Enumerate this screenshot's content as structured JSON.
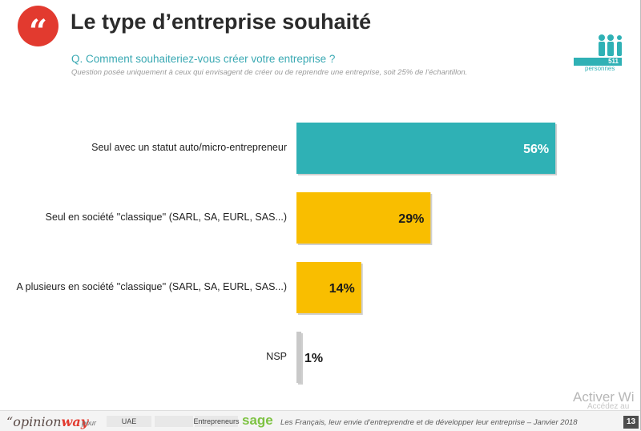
{
  "header": {
    "title": "Le type d’entreprise souhaité",
    "quote_glyph": "“",
    "question": "Q. Comment souhaiteriez-vous créer votre entreprise ?",
    "note": "Question posée uniquement à ceux qui envisagent de créer ou de reprendre une entreprise, soit 25% de l’échantillon."
  },
  "badge": {
    "count": "511",
    "label": "personnes",
    "icon": "people-group-icon"
  },
  "chart_data": {
    "type": "bar",
    "orientation": "horizontal",
    "categories": [
      "Seul avec un statut auto/micro-entrepreneur",
      "Seul en société ''classique'' (SARL, SA, EURL, SAS...)",
      "A plusieurs en société ''classique'' (SARL, SA, EURL, SAS...)",
      "NSP"
    ],
    "values": [
      56,
      29,
      14,
      1
    ],
    "value_labels": [
      "56%",
      "29%",
      "14%",
      "1%"
    ],
    "colors": [
      "#2fb1b5",
      "#f9be00",
      "#f9be00",
      "#c9c9c9"
    ],
    "label_colors": [
      "#ffffff",
      "#1a1a1a",
      "#1a1a1a",
      "#1a1a1a"
    ],
    "xlim": [
      0,
      100
    ],
    "grid": false,
    "legend": "none"
  },
  "footer": {
    "brand_prefix": "“",
    "brand_main": "opinion",
    "brand_accent": "way",
    "pour": "pour",
    "partners": [
      "UAE",
      "",
      "Entrepreneurs"
    ],
    "sage": "sage",
    "text": "Les Français, leur envie d’entreprendre et de développer leur entreprise – Janvier 2018",
    "page": "13"
  },
  "watermark": {
    "title": "Activer Wi",
    "sub": "Accédez au"
  }
}
